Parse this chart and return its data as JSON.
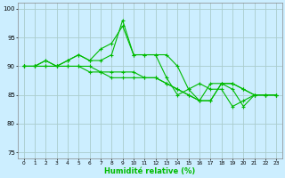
{
  "xlabel": "Humidité relative (%)",
  "background_color": "#cceeff",
  "grid_color": "#aacccc",
  "line_color": "#00bb00",
  "xlim": [
    -0.5,
    23.5
  ],
  "ylim": [
    74,
    101
  ],
  "yticks": [
    75,
    80,
    85,
    90,
    95,
    100
  ],
  "xticks": [
    0,
    1,
    2,
    3,
    4,
    5,
    6,
    7,
    8,
    9,
    10,
    11,
    12,
    13,
    14,
    15,
    16,
    17,
    18,
    19,
    20,
    21,
    22,
    23
  ],
  "series": [
    [
      90,
      90,
      91,
      90,
      91,
      92,
      91,
      93,
      94,
      97,
      92,
      92,
      92,
      92,
      90,
      86,
      87,
      86,
      86,
      83,
      84,
      85,
      85,
      85
    ],
    [
      90,
      90,
      91,
      90,
      91,
      92,
      91,
      91,
      92,
      98,
      92,
      92,
      92,
      88,
      85,
      86,
      84,
      87,
      87,
      86,
      83,
      85,
      85,
      85
    ],
    [
      90,
      90,
      90,
      90,
      90,
      90,
      90,
      89,
      89,
      89,
      89,
      88,
      88,
      87,
      86,
      85,
      84,
      84,
      87,
      87,
      86,
      85,
      85,
      85
    ],
    [
      90,
      90,
      90,
      90,
      90,
      90,
      89,
      89,
      88,
      88,
      88,
      88,
      88,
      87,
      86,
      85,
      84,
      84,
      87,
      87,
      86,
      85,
      85,
      85
    ]
  ]
}
